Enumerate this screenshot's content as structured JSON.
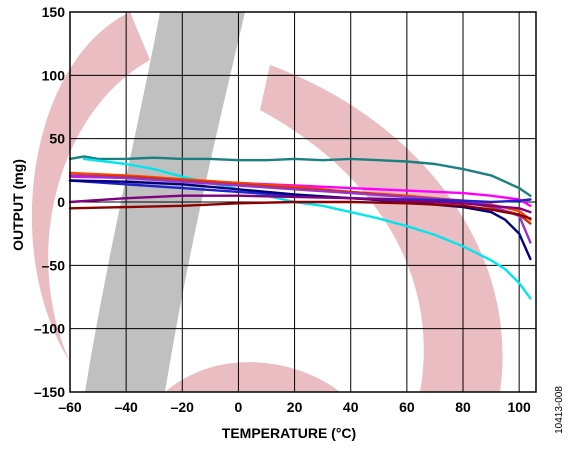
{
  "chart_data": {
    "type": "line",
    "title": "",
    "xlabel": "TEMPERATURE (°C)",
    "ylabel": "OUTPUT (mg)",
    "xlim": [
      -60,
      106
    ],
    "ylim": [
      -150,
      150
    ],
    "xticks": [
      -60,
      -40,
      -20,
      0,
      20,
      40,
      60,
      80,
      100
    ],
    "xtick_labels": [
      "–60",
      "–40",
      "–20",
      "0",
      "20",
      "40",
      "60",
      "80",
      "100"
    ],
    "yticks": [
      150,
      100,
      50,
      0,
      -50,
      -100,
      -150
    ],
    "ytick_labels": [
      "150",
      "100",
      "50",
      "0",
      "–50",
      "–100",
      "–150"
    ],
    "grid": true,
    "figure_id": "10413-008",
    "series": [
      {
        "color": "#1a8080",
        "x": [
          -60,
          -55,
          -50,
          -40,
          -30,
          -20,
          -10,
          0,
          10,
          20,
          30,
          40,
          50,
          60,
          70,
          80,
          90,
          95,
          100,
          104
        ],
        "y": [
          34,
          36,
          34,
          34,
          35,
          34,
          34,
          33,
          33,
          34,
          33,
          34,
          33,
          32,
          30,
          26,
          21,
          16,
          11,
          5
        ]
      },
      {
        "color": "#00e5ee",
        "x": [
          -55,
          -40,
          -30,
          -20,
          -10,
          0,
          10,
          20,
          30,
          40,
          50,
          60,
          70,
          80,
          90,
          95,
          100,
          104
        ],
        "y": [
          34,
          30,
          26,
          20,
          15,
          10,
          5,
          0,
          -3,
          -8,
          -13,
          -19,
          -26,
          -35,
          -46,
          -53,
          -64,
          -76
        ]
      },
      {
        "color": "#ff00ff",
        "x": [
          -60,
          -40,
          -20,
          0,
          20,
          40,
          60,
          80,
          90,
          100,
          104
        ],
        "y": [
          20,
          19,
          17,
          15,
          13,
          11,
          9,
          7,
          5,
          2,
          -3
        ]
      },
      {
        "color": "#ff4500",
        "x": [
          -60,
          -40,
          -20,
          0,
          20,
          40,
          60,
          80,
          90,
          100,
          104
        ],
        "y": [
          23,
          21,
          18,
          15,
          12,
          8,
          5,
          1,
          -2,
          -7,
          -14
        ]
      },
      {
        "color": "#cc3300",
        "x": [
          -60,
          -40,
          -20,
          0,
          20,
          40,
          60,
          80,
          90,
          100,
          104
        ],
        "y": [
          21,
          20,
          17,
          14,
          11,
          8,
          4,
          0,
          -4,
          -10,
          -17
        ]
      },
      {
        "color": "#9933cc",
        "x": [
          -60,
          -40,
          -20,
          0,
          20,
          40,
          60,
          80,
          90,
          100,
          104
        ],
        "y": [
          21,
          19,
          16,
          13,
          10,
          7,
          4,
          1,
          -3,
          -11,
          -32
        ]
      },
      {
        "color": "#2222cc",
        "x": [
          -60,
          -40,
          -20,
          0,
          20,
          40,
          60,
          80,
          90,
          100,
          104
        ],
        "y": [
          17,
          14,
          11,
          8,
          5,
          3,
          2,
          1,
          0,
          1,
          2
        ]
      },
      {
        "color": "#000080",
        "x": [
          -60,
          -40,
          -20,
          0,
          20,
          40,
          60,
          80,
          90,
          95,
          100,
          104
        ],
        "y": [
          17,
          16,
          14,
          10,
          6,
          3,
          0,
          -4,
          -8,
          -14,
          -25,
          -45
        ]
      },
      {
        "color": "#800080",
        "x": [
          -60,
          -40,
          -20,
          0,
          20,
          40,
          60,
          80,
          90,
          100,
          104
        ],
        "y": [
          0,
          3,
          5,
          5,
          4,
          3,
          1,
          -1,
          -3,
          -5,
          -8
        ]
      },
      {
        "color": "#8b0000",
        "x": [
          -60,
          -40,
          -20,
          0,
          20,
          40,
          60,
          80,
          90,
          100,
          104
        ],
        "y": [
          -5,
          -4,
          -3,
          -1,
          0,
          0,
          -1,
          -3,
          -6,
          -10,
          -13
        ]
      }
    ]
  }
}
